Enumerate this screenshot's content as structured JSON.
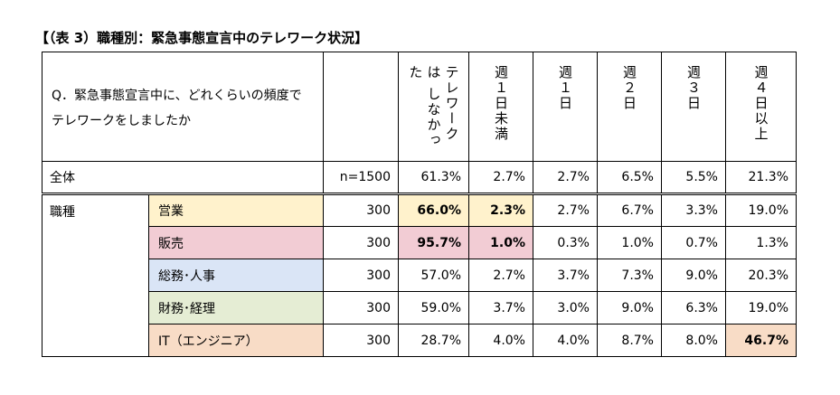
{
  "title": "【（表 3）職種別：緊急事態宣言中のテレワーク状況】",
  "question": {
    "line1": "Q．緊急事態宣言中に、どれくらいの頻度で",
    "line2": "テレワークをしましたか"
  },
  "columns": [
    "テレワークは しなかった",
    "週１日未満",
    "週１日",
    "週２日",
    "週３日",
    "週４日以上"
  ],
  "total_row": {
    "label": "全体",
    "n": "n=1500",
    "values": [
      "61.3%",
      "2.7%",
      "2.7%",
      "6.5%",
      "5.5%",
      "21.3%"
    ]
  },
  "group_label": "職種",
  "rows": [
    {
      "label": "営業",
      "n": "300",
      "values": [
        "66.0%",
        "2.3%",
        "2.7%",
        "6.7%",
        "3.3%",
        "19.0%"
      ]
    },
    {
      "label": "販売",
      "n": "300",
      "values": [
        "95.7%",
        "1.0%",
        "0.3%",
        "1.0%",
        "0.7%",
        "1.3%"
      ]
    },
    {
      "label": "総務･人事",
      "n": "300",
      "values": [
        "57.0%",
        "2.7%",
        "3.7%",
        "7.3%",
        "9.0%",
        "20.3%"
      ]
    },
    {
      "label": "財務･経理",
      "n": "300",
      "values": [
        "59.0%",
        "3.7%",
        "3.0%",
        "9.0%",
        "6.3%",
        "19.0%"
      ]
    },
    {
      "label": "IT（エンジニア）",
      "n": "300",
      "values": [
        "28.7%",
        "4.0%",
        "4.0%",
        "8.7%",
        "8.0%",
        "46.7%"
      ]
    }
  ],
  "colors": {
    "eigyo": "#fff2cc",
    "hanbai": "#f2ccd4",
    "somu": "#dae5f6",
    "zaimu": "#e5edd4",
    "it": "#f8dcc6"
  }
}
